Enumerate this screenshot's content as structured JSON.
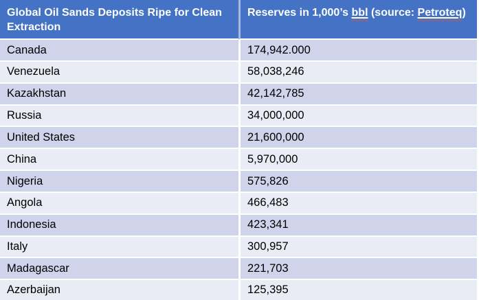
{
  "table": {
    "header": {
      "col1": "Global Oil Sands Deposits Ripe for Clean Extraction",
      "col2": {
        "prefix": "Reserves in 1,000’s ",
        "bbl": "bbl",
        "mid": " (source: ",
        "petroteq": "Petroteq",
        "suffix": ")"
      }
    },
    "rows": [
      {
        "country": "Canada",
        "reserves": "174,942.000"
      },
      {
        "country": "Venezuela",
        "reserves": "58,038,246"
      },
      {
        "country": "Kazakhstan",
        "reserves": "42,142,785"
      },
      {
        "country": "Russia",
        "reserves": "34,000,000"
      },
      {
        "country": "United States",
        "reserves": "21,600,000"
      },
      {
        "country": "China",
        "reserves": "5,970,000"
      },
      {
        "country": "Nigeria",
        "reserves": "575,826"
      },
      {
        "country": "Angola",
        "reserves": "466,483"
      },
      {
        "country": "Indonesia",
        "reserves": "423,341"
      },
      {
        "country": "Italy",
        "reserves": "300,957"
      },
      {
        "country": "Madagascar",
        "reserves": "221,703"
      },
      {
        "country": "Azerbaijan",
        "reserves": "125,395"
      }
    ],
    "colors": {
      "header_bg": "#4472C4",
      "header_text": "#FFFFFF",
      "band_dark": "#CFD4EA",
      "band_light": "#E9EBF5",
      "separator": "#FFFFFF",
      "header_divider": "#A9B8E2",
      "spellcheck_red": "#CC5A52",
      "body_text": "#000000"
    }
  },
  "chart_data": {
    "type": "table",
    "title": "Global Oil Sands Deposits Ripe for Clean Extraction",
    "columns": [
      "Global Oil Sands Deposits Ripe for Clean Extraction",
      "Reserves in 1,000’s bbl (source: Petroteq)"
    ],
    "categories": [
      "Canada",
      "Venezuela",
      "Kazakhstan",
      "Russia",
      "United States",
      "China",
      "Nigeria",
      "Angola",
      "Indonesia",
      "Italy",
      "Madagascar",
      "Azerbaijan"
    ],
    "values_display": [
      "174,942.000",
      "58,038,246",
      "42,142,785",
      "34,000,000",
      "21,600,000",
      "5,970,000",
      "575,826",
      "466,483",
      "423,341",
      "300,957",
      "221,703",
      "125,395"
    ],
    "values": [
      174942.0,
      58038246,
      42142785,
      34000000,
      21600000,
      5970000,
      575826,
      466483,
      423341,
      300957,
      221703,
      125395
    ],
    "unit": "1,000’s bbl",
    "source": "Petroteq",
    "layout": {
      "banded_rows": true,
      "header_fill": "#4472C4"
    }
  }
}
